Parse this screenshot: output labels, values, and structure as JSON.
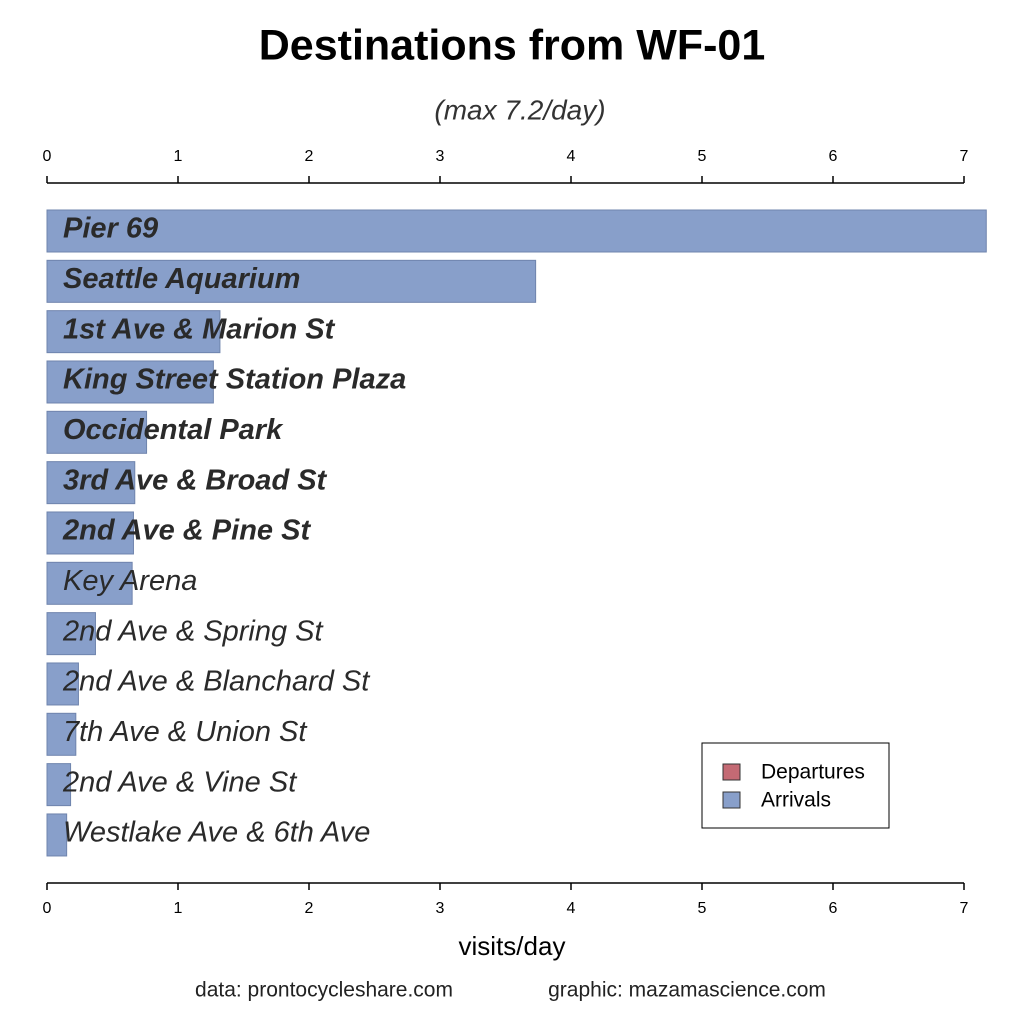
{
  "chart_data": {
    "type": "bar",
    "orientation": "horizontal",
    "title": "Destinations from WF-01",
    "subtitle": "(max 7.2/day)",
    "x_label": "visits/day",
    "footer": [
      "data:  prontocycleshare.com",
      "graphic:  mazamascience.com"
    ],
    "categories": [
      "Pier 69",
      "Seattle Aquarium",
      "1st Ave & Marion St",
      "King Street Station Plaza",
      "Occidental Park",
      "3rd Ave & Broad St",
      "2nd Ave & Pine St",
      "Key Arena",
      "2nd Ave & Spring St",
      "2nd Ave & Blanchard St",
      "7th Ave & Union St",
      "2nd Ave & Vine St",
      "Westlake Ave & 6th Ave"
    ],
    "values": [
      7.17,
      3.73,
      1.32,
      1.27,
      0.76,
      0.67,
      0.66,
      0.65,
      0.37,
      0.24,
      0.22,
      0.18,
      0.15
    ],
    "bold_labels": 7,
    "color": "#889fca",
    "xlim": [
      0,
      7
    ],
    "xticks": [
      0,
      1,
      2,
      3,
      4,
      5,
      6,
      7
    ],
    "legend": {
      "position": "bottom-right",
      "entries": [
        {
          "name": "Departures",
          "color": "#c46a74"
        },
        {
          "name": "Arrivals",
          "color": "#889fca"
        }
      ]
    }
  }
}
